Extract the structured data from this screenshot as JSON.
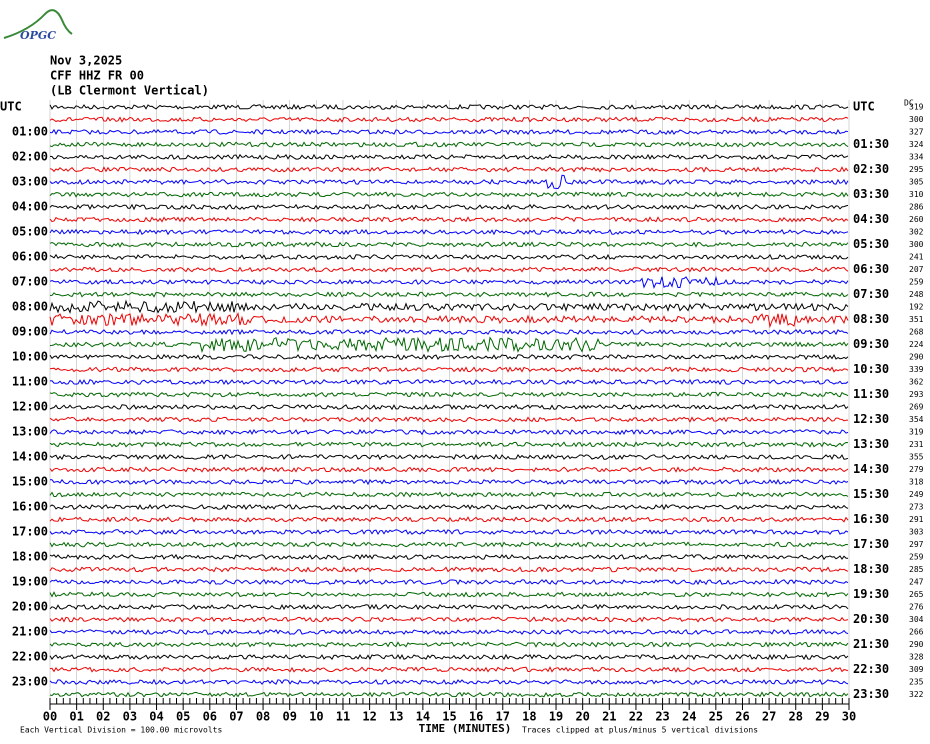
{
  "logo": "OPGC",
  "header": {
    "date": "Nov 3,2025",
    "station": "CFF HHZ FR 00",
    "location": "(LB Clermont Vertical)"
  },
  "left_labels": [
    "UTC",
    "01:00",
    "02:00",
    "03:00",
    "04:00",
    "05:00",
    "06:00",
    "07:00",
    "08:00",
    "09:00",
    "10:00",
    "11:00",
    "12:00",
    "13:00",
    "14:00",
    "15:00",
    "16:00",
    "17:00",
    "18:00",
    "19:00",
    "20:00",
    "21:00",
    "22:00",
    "23:00"
  ],
  "right_labels": [
    "UTC",
    "01:30",
    "02:30",
    "03:30",
    "04:30",
    "05:30",
    "06:30",
    "07:30",
    "08:30",
    "09:30",
    "10:30",
    "11:30",
    "12:30",
    "13:30",
    "14:30",
    "15:30",
    "16:30",
    "17:30",
    "18:30",
    "19:30",
    "20:30",
    "21:30",
    "22:30",
    "23:30"
  ],
  "dc_label": "DC",
  "dc_values": [
    319,
    300,
    327,
    324,
    334,
    295,
    305,
    310,
    286,
    260,
    302,
    300,
    241,
    207,
    259,
    248,
    192,
    351,
    268,
    224,
    290,
    339,
    362,
    293,
    269,
    354,
    319,
    231,
    355,
    279,
    318,
    249,
    273,
    291,
    303,
    297,
    259,
    285,
    247,
    265,
    276,
    304,
    266,
    290,
    328,
    309,
    235,
    322
  ],
  "x_ticks": [
    "00",
    "01",
    "02",
    "03",
    "04",
    "05",
    "06",
    "07",
    "08",
    "09",
    "10",
    "11",
    "12",
    "13",
    "14",
    "15",
    "16",
    "17",
    "18",
    "19",
    "20",
    "21",
    "22",
    "23",
    "24",
    "25",
    "26",
    "27",
    "28",
    "29",
    "30"
  ],
  "footer": {
    "scale": "Each Vertical Division =  100.00 microvolts",
    "axis_title": "TIME (MINUTES)",
    "clip": "Traces clipped at plus/minus 5 vertical divisions"
  }
}
